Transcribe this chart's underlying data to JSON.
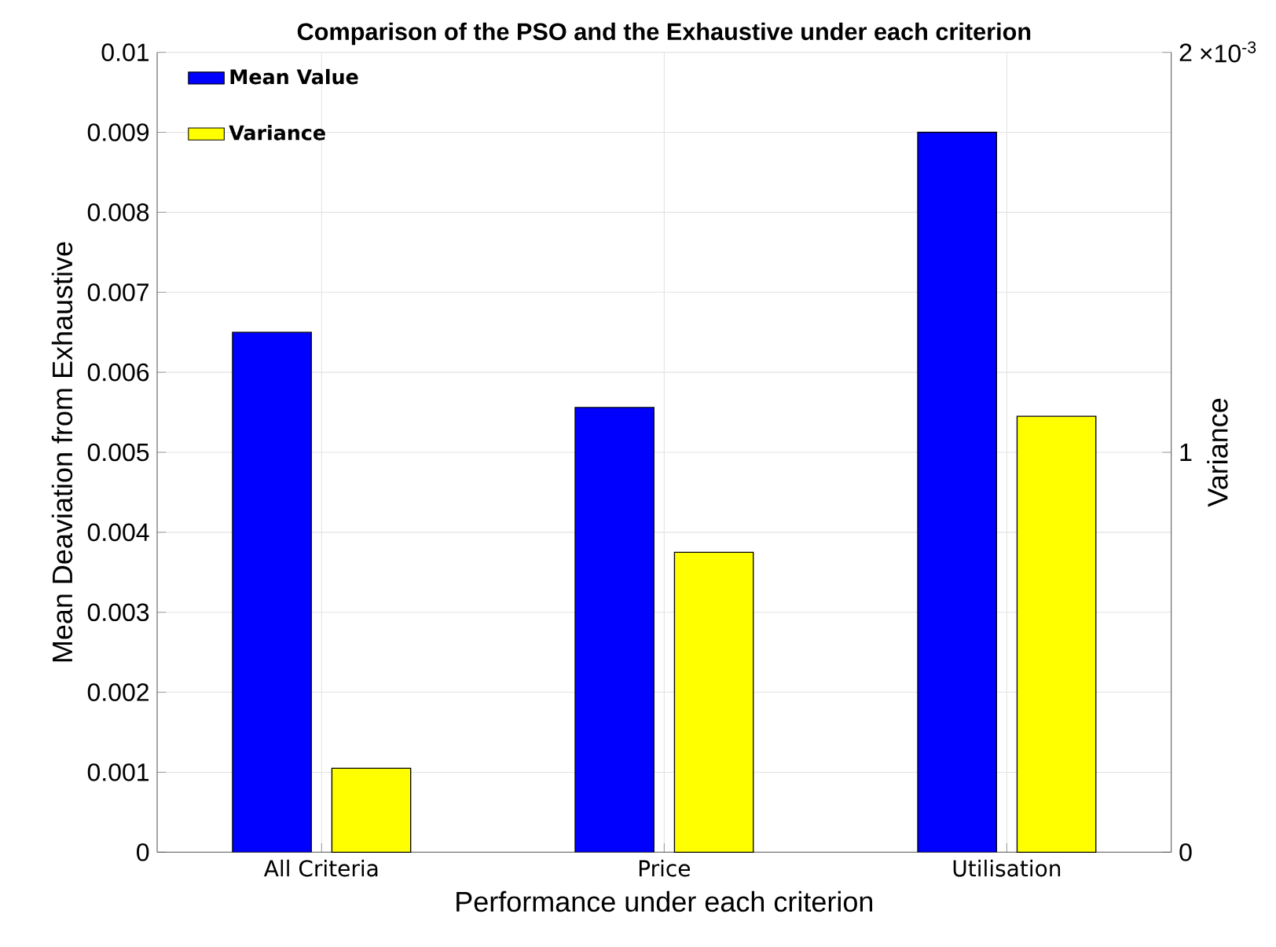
{
  "chart_data": {
    "type": "bar",
    "title": "Comparison of the PSO and the Exhaustive under each criterion",
    "xlabel": "Performance under each criterion",
    "ylabel": "Mean Deaviation from Exhaustive",
    "y2label": "Variance",
    "categories": [
      "All Criteria",
      "Price",
      "Utilisation"
    ],
    "series": [
      {
        "name": "Mean Value",
        "color": "#0000ff",
        "values": [
          0.0065,
          0.00556,
          0.009
        ]
      },
      {
        "name": "Variance",
        "color": "#ffff00",
        "axis": "y2",
        "values": [
          0.21,
          0.75,
          1.09
        ]
      }
    ],
    "ylim": [
      0,
      0.01
    ],
    "yticks": [
      0,
      0.001,
      0.002,
      0.003,
      0.004,
      0.005,
      0.006,
      0.007,
      0.008,
      0.009,
      0.01
    ],
    "y2lim": [
      0,
      2
    ],
    "y2ticks": [
      0,
      1,
      2
    ],
    "annotations": [
      "×10$^{-3}$"
    ],
    "grid": true,
    "legend": "top left"
  }
}
